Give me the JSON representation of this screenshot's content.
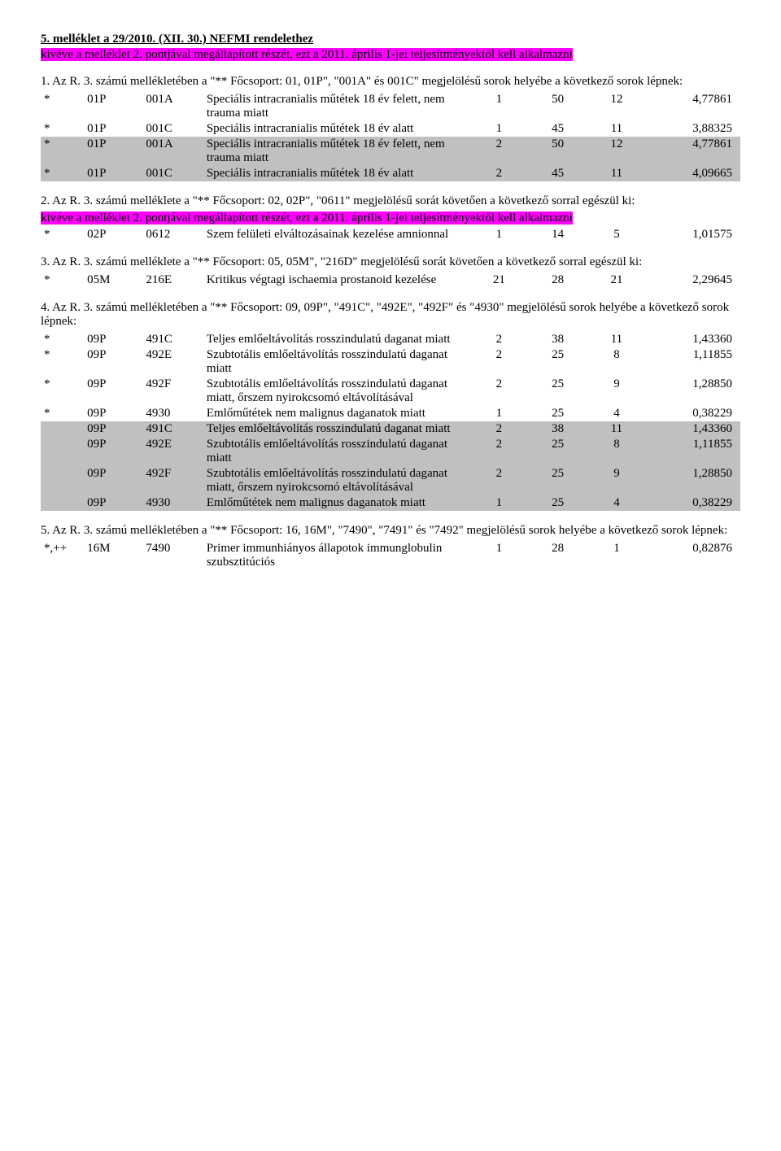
{
  "title": "5. melléklet a 29/2010. (XII. 30.) NEFMI rendelethez",
  "subtitle_hl": "kivéve a melléklet 2. pontjával megállapított részét, ezt a 2011. április 1-jei teljesítményektől kell alkalmazni",
  "s1_intro_a": "1. Az R. 3. számú mellékletében a \"** Főcsoport: 01, 01P\", \"001A\" és 001C\" megjelölésű sorok helyébe a következő sorok lépnek:",
  "s1_rows": [
    {
      "c0": "*",
      "c1": "01P",
      "c2": "001A",
      "c3": "Speciális intracranialis műtétek 18 év felett, nem trauma miatt",
      "c4": "1",
      "c5": "50",
      "c6": "12",
      "c7": "4,77861",
      "hl": false
    },
    {
      "c0": "*",
      "c1": "01P",
      "c2": "001C",
      "c3": "Speciális intracranialis műtétek 18 év alatt",
      "c4": "1",
      "c5": "45",
      "c6": "11",
      "c7": "3,88325",
      "hl": false
    },
    {
      "c0": "*",
      "c1": "01P",
      "c2": "001A",
      "c3": "Speciális intracranialis műtétek 18 év felett, nem trauma miatt",
      "c4": "2",
      "c5": "50",
      "c6": "12",
      "c7": "4,77861",
      "hl": true
    },
    {
      "c0": "*",
      "c1": "01P",
      "c2": "001C",
      "c3": "Speciális intracranialis műtétek 18 év alatt",
      "c4": "2",
      "c5": "45",
      "c6": "11",
      "c7": "4,09665",
      "hl": true
    }
  ],
  "s2_intro": "2. Az R. 3. számú melléklete a \"** Főcsoport: 02, 02P\", \"0611\" megjelölésű sorát követően a következő sorral egészül ki:",
  "subtitle_hl2": "kivéve a melléklet 2. pontjával megállapított részét, ezt a 2011. április 1-jei teljesítményektől kell alkalmazni",
  "s2_rows": [
    {
      "c0": "*",
      "c1": "02P",
      "c2": "0612",
      "c3": "Szem felületi elváltozásainak kezelése amnionnal",
      "c4": "1",
      "c5": "14",
      "c6": "5",
      "c7": "1,01575",
      "hl": false
    }
  ],
  "s3_intro": "3. Az R. 3. számú melléklete a \"** Főcsoport: 05, 05M\", \"216D\" megjelölésű sorát követően a következő sorral egészül ki:",
  "s3_rows": [
    {
      "c0": "*",
      "c1": "05M",
      "c2": "216E",
      "c3": "Kritikus végtagi ischaemia prostanoid kezelése",
      "c4": "21",
      "c5": "28",
      "c6": "21",
      "c7": "2,29645",
      "hl": false
    }
  ],
  "s4_intro": "4. Az R. 3. számú mellékletében a \"** Főcsoport: 09, 09P\", \"491C\", \"492E\", \"492F\" és \"4930\" megjelölésű sorok helyébe a következő sorok lépnek:",
  "s4_rows": [
    {
      "c0": "*",
      "c1": "09P",
      "c2": "491C",
      "c3": "Teljes emlőeltávolítás rosszindulatú daganat miatt",
      "c4": "2",
      "c5": "38",
      "c6": "11",
      "c7": "1,43360",
      "hl": false
    },
    {
      "c0": "*",
      "c1": "09P",
      "c2": "492E",
      "c3": "Szubtotális emlőeltávolítás rosszindulatú daganat miatt",
      "c4": "2",
      "c5": "25",
      "c6": "8",
      "c7": "1,11855",
      "hl": false
    },
    {
      "c0": "*",
      "c1": "09P",
      "c2": "492F",
      "c3": "Szubtotális emlőeltávolítás rosszindulatú daganat miatt, őrszem nyirokcsomó eltávolításával",
      "c4": "2",
      "c5": "25",
      "c6": "9",
      "c7": "1,28850",
      "hl": false
    },
    {
      "c0": "*",
      "c1": "09P",
      "c2": "4930",
      "c3": "Emlőműtétek nem malignus daganatok miatt",
      "c4": "1",
      "c5": "25",
      "c6": "4",
      "c7": "0,38229",
      "hl": false
    },
    {
      "c0": "",
      "c1": "09P",
      "c2": "491C",
      "c3": "Teljes emlőeltávolítás rosszindulatú daganat miatt",
      "c4": "2",
      "c5": "38",
      "c6": "11",
      "c7": "1,43360",
      "hl": true
    },
    {
      "c0": "",
      "c1": "09P",
      "c2": "492E",
      "c3": "Szubtotális emlőeltávolítás rosszindulatú daganat miatt",
      "c4": "2",
      "c5": "25",
      "c6": "8",
      "c7": "1,11855",
      "hl": true
    },
    {
      "c0": "",
      "c1": "09P",
      "c2": "492F",
      "c3": "Szubtotális emlőeltávolítás rosszindulatú daganat miatt, őrszem nyirokcsomó eltávolításával",
      "c4": "2",
      "c5": "25",
      "c6": "9",
      "c7": "1,28850",
      "hl": true
    },
    {
      "c0": "",
      "c1": "09P",
      "c2": "4930",
      "c3": "Emlőműtétek nem malignus daganatok miatt",
      "c4": "1",
      "c5": "25",
      "c6": "4",
      "c7": "0,38229",
      "hl": true
    }
  ],
  "s5_intro": "5. Az R. 3. számú mellékletében a \"** Főcsoport: 16, 16M\", \"7490\", \"7491\" és \"7492\" megjelölésű sorok helyébe a következő sorok lépnek:",
  "s5_rows": [
    {
      "c0": "*,++",
      "c1": "16M",
      "c2": "7490",
      "c3": "Primer immunhiányos állapotok immunglobulin szubsztitúciós",
      "c4": "1",
      "c5": "28",
      "c6": "1",
      "c7": "0,82876",
      "hl": false
    }
  ],
  "colors": {
    "highlight_pink": "#ff00ff",
    "highlight_gray": "#c0c0c0",
    "background": "#ffffff",
    "text": "#000000"
  }
}
